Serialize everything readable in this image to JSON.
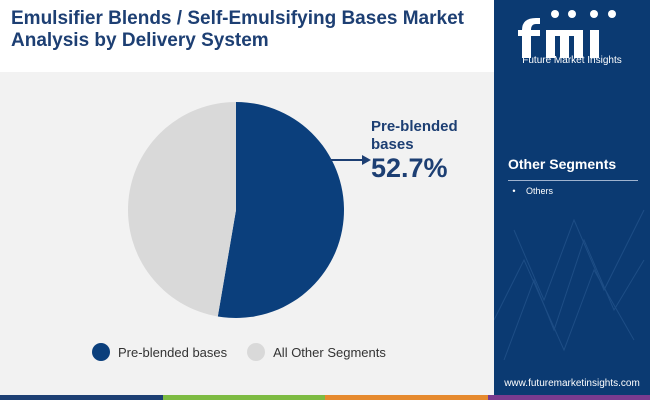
{
  "header": {
    "title_line1": "Emulsifier Blends / Self-Emulsifying Bases Market",
    "title_line2": "Analysis by Delivery System"
  },
  "brand": {
    "logo_text": "Future Market Insights",
    "url": "www.futuremarketinsights.com"
  },
  "sidebar": {
    "section_title": "Other Segments",
    "items": [
      "Others"
    ]
  },
  "callout": {
    "label": "Pre-blended bases",
    "value": "52.7%"
  },
  "legend": [
    {
      "label": "Pre-blended bases",
      "color": "#0b3f7c"
    },
    {
      "label": "All Other Segments",
      "color": "#d9d9d9"
    }
  ],
  "colors": {
    "title": "#1d3f73",
    "sidebar": "#0b3a72",
    "background": "#f2f2f2",
    "bottom_bar": [
      "#1d3f73",
      "#7dbb42",
      "#e68a2e",
      "#7a3b8f"
    ]
  },
  "chart_data": {
    "type": "pie",
    "title": "",
    "slices": [
      {
        "label": "Pre-blended bases",
        "value": 52.7,
        "color": "#0b3f7c"
      },
      {
        "label": "All Other Segments",
        "value": 47.3,
        "color": "#d9d9d9"
      }
    ]
  }
}
